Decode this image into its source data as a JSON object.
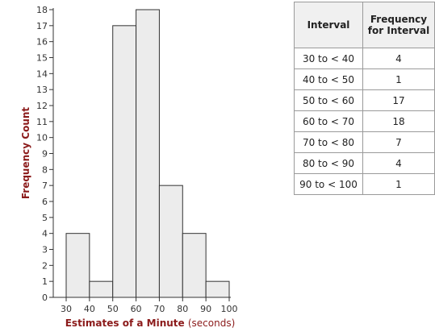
{
  "chart_data": {
    "type": "bar",
    "bins": [
      {
        "start": 30,
        "end": 40,
        "value": 4
      },
      {
        "start": 40,
        "end": 50,
        "value": 1
      },
      {
        "start": 50,
        "end": 60,
        "value": 17
      },
      {
        "start": 60,
        "end": 70,
        "value": 18
      },
      {
        "start": 70,
        "end": 80,
        "value": 7
      },
      {
        "start": 80,
        "end": 90,
        "value": 4
      },
      {
        "start": 90,
        "end": 100,
        "value": 1
      }
    ],
    "xlabel_main": "Estimates of a Minute",
    "xlabel_unit": "(seconds)",
    "ylabel": "Frequency Count",
    "xlim": [
      30,
      100
    ],
    "ylim": [
      0,
      18
    ],
    "xticks": [
      30,
      40,
      50,
      60,
      70,
      80,
      90,
      100
    ],
    "yticks": [
      0,
      1,
      2,
      3,
      4,
      5,
      6,
      7,
      8,
      9,
      10,
      11,
      12,
      13,
      14,
      15,
      16,
      17,
      18
    ],
    "grid": false,
    "bar_color": "#ececec",
    "axis_title_color": "#8b1a1a"
  },
  "table": {
    "headers": {
      "interval": "Interval",
      "freq_line1": "Frequency",
      "freq_line2": "for Interval"
    },
    "rows": [
      {
        "interval": "30 to < 40",
        "freq": "4"
      },
      {
        "interval": "40 to < 50",
        "freq": "1"
      },
      {
        "interval": "50 to < 60",
        "freq": "17"
      },
      {
        "interval": "60 to < 70",
        "freq": "18"
      },
      {
        "interval": "70 to < 80",
        "freq": "7"
      },
      {
        "interval": "80 to < 90",
        "freq": "4"
      },
      {
        "interval": "90 to < 100",
        "freq": "1"
      }
    ]
  }
}
